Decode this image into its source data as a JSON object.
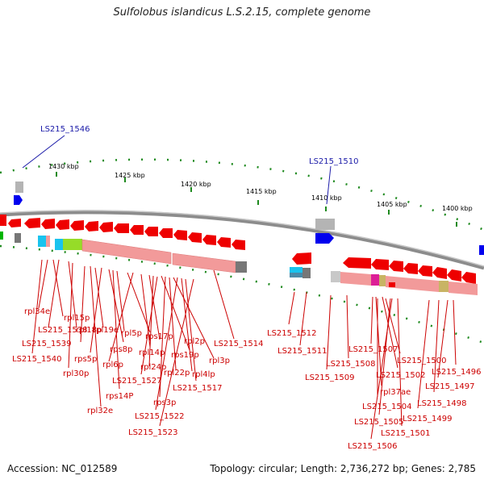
{
  "title": "Sulfolobus islandicus L.S.2.15, complete genome",
  "footer": {
    "accession": "Accession: NC_012589",
    "summary": "Topology: circular; Length: 2,736,272 bp; Genes: 2,785"
  },
  "colors": {
    "gene_red": "#ee0000",
    "gene_pink": "#f29a9a",
    "backbone": "#8c8c8c",
    "tick_green": "#1f8a1f",
    "label_red": "#cc0000",
    "callout_blue": "#1a1aa8"
  },
  "scale_ticks": [
    "1430 kbp",
    "1425 kbp",
    "1420 kbp",
    "1415 kbp",
    "1410 kbp",
    "1405 kbp",
    "1400 kbp"
  ],
  "callouts": [
    "LS215_1546",
    "LS215_1510"
  ],
  "gene_labels": [
    "rpl34e",
    "rpl15p",
    "LS215_1538",
    "rpl18p",
    "rpl19e",
    "LS215_1539",
    "rps8p",
    "rpl5p",
    "rps17p",
    "rpl6p",
    "rpl14p",
    "rpl2p",
    "LS215_1540",
    "rps5p",
    "rps19p",
    "rpl3p",
    "LS215_1514",
    "rpl30p",
    "LS215_1527",
    "rpl24p",
    "rpl22p",
    "rpl4lp",
    "rps14P",
    "LS215_1517",
    "rps3p",
    "rpl32e",
    "LS215_1522",
    "LS215_1523",
    "LS215_1512",
    "LS215_1511",
    "LS215_1509",
    "LS215_1508",
    "LS215_1507",
    "rpl37ae",
    "LS215_1502",
    "LS215_1500",
    "LS215_1496",
    "LS215_1497",
    "LS215_1504",
    "LS215_1498",
    "LS215_1505",
    "LS215_1499",
    "LS215_1501",
    "LS215_1506"
  ]
}
